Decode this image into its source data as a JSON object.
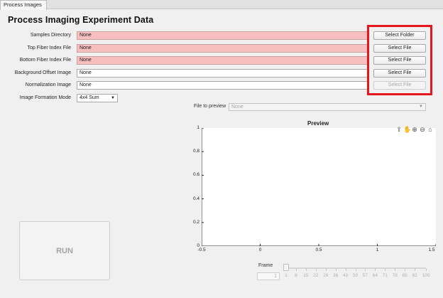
{
  "tab": {
    "label": "Process Images"
  },
  "title": "Process Imaging Experiment Data",
  "rows": [
    {
      "label": "Samples Directory",
      "value": "None",
      "error": true,
      "button": "Select Folder",
      "enabled": true
    },
    {
      "label": "Top Fiber Index File",
      "value": "None",
      "error": true,
      "button": "Select File",
      "enabled": true
    },
    {
      "label": "Bottom Fiber Index File",
      "value": "None",
      "error": true,
      "button": "Select File",
      "enabled": true
    },
    {
      "label": "Background Offset Image",
      "value": "None",
      "error": false,
      "button": "Select File",
      "enabled": true
    },
    {
      "label": "Normalization Image",
      "value": "None",
      "error": false,
      "button": "Select File",
      "enabled": false
    }
  ],
  "mode": {
    "label": "Image Formation Mode",
    "value": "4x4 Sum"
  },
  "preview_file": {
    "label": "File to preview",
    "value": "None"
  },
  "run": {
    "label": "RUN"
  },
  "axes": {
    "title": "Preview",
    "x_ticks": [
      "-0.5",
      "0",
      "0.5",
      "1",
      "1.5"
    ],
    "y_ticks": [
      "1",
      "0.8",
      "0.6",
      "0.4",
      "0.2",
      "0"
    ],
    "xlim": [
      -0.5,
      1.5
    ],
    "ylim": [
      0,
      1
    ]
  },
  "frame": {
    "label": "Frame",
    "value": "1",
    "ticks": [
      "1",
      "8",
      "15",
      "22",
      "29",
      "36",
      "43",
      "50",
      "57",
      "64",
      "71",
      "78",
      "85",
      "92",
      "100"
    ]
  },
  "colors": {
    "error_field": "#f7bfbf",
    "highlight": "#e8151c"
  }
}
